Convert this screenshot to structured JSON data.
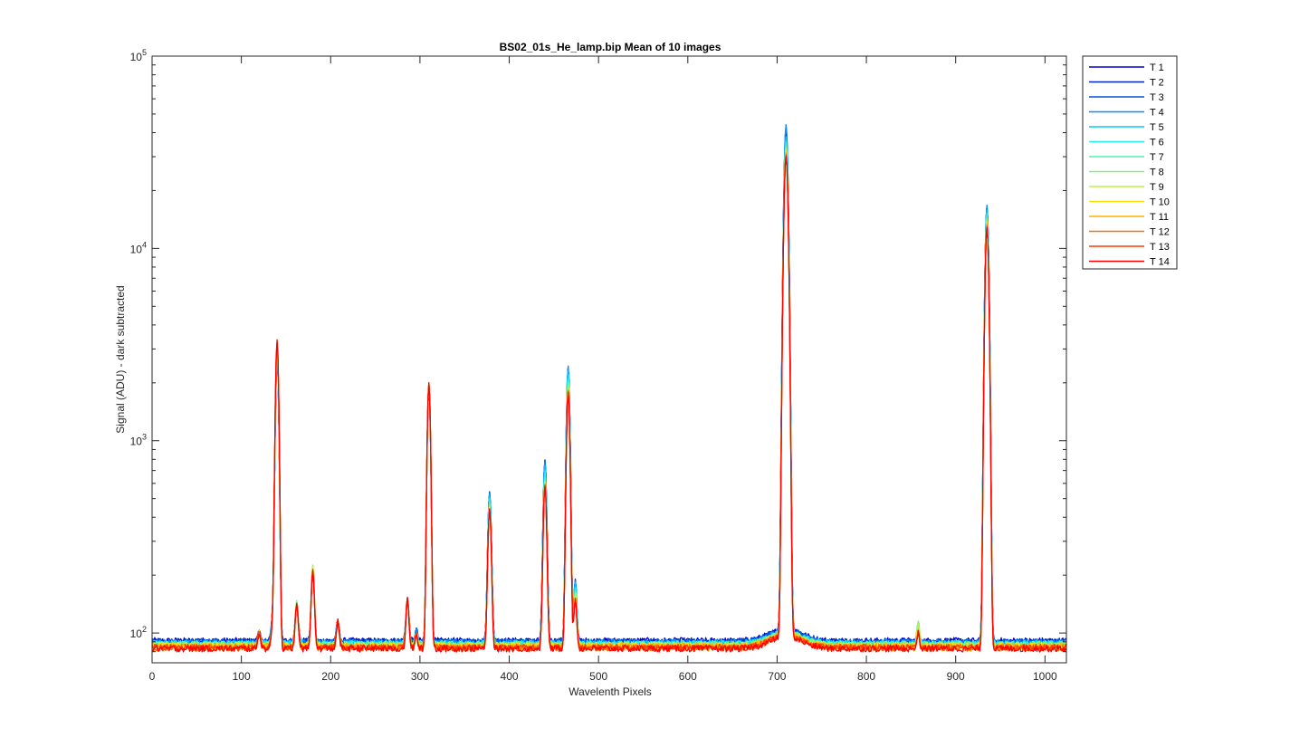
{
  "chart_data": {
    "type": "line",
    "title": "BS02_01s_He_lamp.bip  Mean of 10 images",
    "xlabel": "Wavelenth Pixels",
    "ylabel": "Signal (ADU) - dark subtracted",
    "xlim": [
      0,
      1024
    ],
    "ylim": [
      70,
      100000
    ],
    "yscale": "log",
    "x_ticks": [
      0,
      100,
      200,
      300,
      400,
      500,
      600,
      700,
      800,
      900,
      1000
    ],
    "y_ticks": [
      {
        "value": 100,
        "base": "10",
        "exp": "2"
      },
      {
        "value": 1000,
        "base": "10",
        "exp": "3"
      },
      {
        "value": 10000,
        "base": "10",
        "exp": "4"
      },
      {
        "value": 100000,
        "base": "10",
        "exp": "5"
      }
    ],
    "grid": false,
    "legend_position": "outside-right-top",
    "peaks": [
      {
        "x": 120,
        "width": 1.5,
        "heights": [
          100,
          100,
          100,
          100,
          100,
          100,
          100,
          100,
          100,
          100,
          100,
          100,
          100,
          100
        ]
      },
      {
        "x": 135,
        "width": 1.5,
        "heights": [
          120,
          120,
          120,
          120,
          120,
          115,
          110,
          110,
          110,
          110,
          110,
          110,
          110,
          110
        ]
      },
      {
        "x": 140,
        "width": 1.6,
        "heights": [
          2700,
          2700,
          2650,
          2600,
          2700,
          2800,
          2900,
          3000,
          3050,
          3100,
          3150,
          3200,
          3250,
          3350
        ]
      },
      {
        "x": 162,
        "width": 1.6,
        "heights": [
          140,
          140,
          140,
          140,
          145,
          145,
          145,
          145,
          140,
          140,
          140,
          140,
          140,
          140
        ]
      },
      {
        "x": 180,
        "width": 1.6,
        "heights": [
          210,
          210,
          210,
          210,
          215,
          215,
          220,
          225,
          220,
          220,
          215,
          215,
          215,
          210
        ]
      },
      {
        "x": 208,
        "width": 1.5,
        "heights": [
          115,
          115,
          115,
          115,
          115,
          115,
          115,
          115,
          115,
          115,
          115,
          115,
          115,
          115
        ]
      },
      {
        "x": 286,
        "width": 1.5,
        "heights": [
          150,
          150,
          150,
          150,
          150,
          150,
          150,
          150,
          150,
          150,
          150,
          150,
          150,
          150
        ]
      },
      {
        "x": 296,
        "width": 1.2,
        "heights": [
          105,
          105,
          105,
          105,
          100,
          100,
          100,
          100,
          100,
          100,
          100,
          100,
          100,
          100
        ]
      },
      {
        "x": 310,
        "width": 1.6,
        "heights": [
          1900,
          1900,
          1900,
          1900,
          1950,
          1950,
          1950,
          1950,
          2000,
          2000,
          2000,
          2000,
          2000,
          2000
        ]
      },
      {
        "x": 378,
        "width": 1.7,
        "heights": [
          540,
          540,
          540,
          530,
          520,
          500,
          480,
          460,
          450,
          450,
          445,
          440,
          440,
          440
        ]
      },
      {
        "x": 440,
        "width": 1.7,
        "heights": [
          790,
          790,
          790,
          780,
          740,
          700,
          660,
          630,
          610,
          600,
          595,
          590,
          585,
          580
        ]
      },
      {
        "x": 466,
        "width": 1.7,
        "heights": [
          2400,
          2400,
          2400,
          2450,
          2300,
          2200,
          2100,
          2000,
          1950,
          1900,
          1850,
          1820,
          1800,
          1780
        ]
      },
      {
        "x": 474,
        "width": 1.5,
        "heights": [
          190,
          190,
          190,
          190,
          180,
          175,
          170,
          165,
          160,
          155,
          150,
          150,
          150,
          150
        ]
      },
      {
        "x": 710,
        "width": 2.0,
        "heights": [
          40000,
          42000,
          43000,
          44000,
          38000,
          36000,
          35000,
          34000,
          33000,
          32000,
          31500,
          31000,
          30500,
          30000
        ]
      },
      {
        "x": 858,
        "width": 1.4,
        "heights": [
          100,
          100,
          100,
          105,
          108,
          110,
          112,
          115,
          110,
          105,
          105,
          100,
          100,
          100
        ]
      },
      {
        "x": 935,
        "width": 1.8,
        "heights": [
          16500,
          16500,
          16500,
          16800,
          15800,
          15200,
          14800,
          14400,
          14000,
          13700,
          13400,
          13200,
          13000,
          12800
        ]
      }
    ],
    "baseline": [
      91,
      90,
      90,
      89,
      88,
      88,
      87,
      87,
      86,
      86,
      85,
      84,
      84,
      83
    ],
    "series": [
      {
        "name": "T 1",
        "color": "#0000d4"
      },
      {
        "name": "T 2",
        "color": "#0022c8"
      },
      {
        "name": "T 3",
        "color": "#0055dd"
      },
      {
        "name": "T 4",
        "color": "#0090ff"
      },
      {
        "name": "T 5",
        "color": "#00c8ff"
      },
      {
        "name": "T 6",
        "color": "#20f0f0"
      },
      {
        "name": "T 7",
        "color": "#50f0b0"
      },
      {
        "name": "T 8",
        "color": "#80f080"
      },
      {
        "name": "T 9",
        "color": "#c0f040"
      },
      {
        "name": "T 10",
        "color": "#ffe000"
      },
      {
        "name": "T 11",
        "color": "#ffb000"
      },
      {
        "name": "T 12",
        "color": "#ff7000"
      },
      {
        "name": "T 13",
        "color": "#ff3a00"
      },
      {
        "name": "T 14",
        "color": "#ff0000"
      }
    ]
  }
}
